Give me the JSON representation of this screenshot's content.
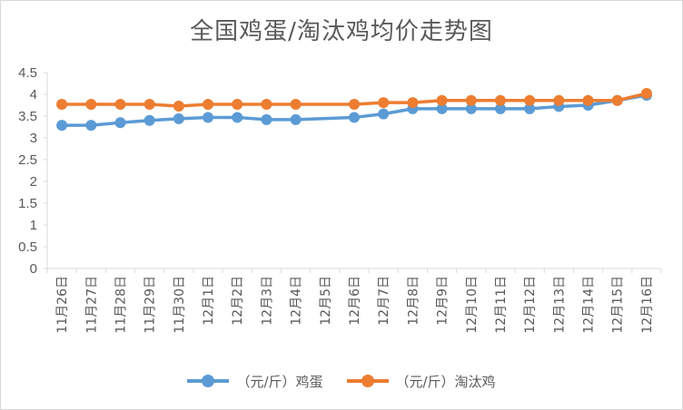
{
  "chart_data": {
    "type": "line",
    "title": "全国鸡蛋/淘汰鸡均价走势图",
    "categories": [
      "11月26日",
      "11月27日",
      "11月28日",
      "11月29日",
      "11月30日",
      "12月1日",
      "12月2日",
      "12月3日",
      "12月4日",
      "12月5日",
      "12月6日",
      "12月7日",
      "12月8日",
      "12月9日",
      "12月10日",
      "12月11日",
      "12月12日",
      "12月13日",
      "12月14日",
      "12月15日",
      "12月16日"
    ],
    "yticks": [
      "0",
      "0.5",
      "1",
      "1.5",
      "2",
      "2.5",
      "3",
      "3.5",
      "4",
      "4.5"
    ],
    "ylim": [
      0,
      4.5
    ],
    "grid": false,
    "legend_position": "bottom",
    "series": [
      {
        "name": "（元/斤）鸡蛋",
        "color": "#5b9bd5",
        "values": [
          3.29,
          3.29,
          3.35,
          3.4,
          3.44,
          3.47,
          3.47,
          3.42,
          3.42,
          null,
          3.47,
          3.55,
          3.67,
          3.67,
          3.67,
          3.67,
          3.67,
          3.72,
          3.75,
          3.86,
          3.98
        ]
      },
      {
        "name": "（元/斤）淘汰鸡",
        "color": "#ed7d31",
        "values": [
          3.77,
          3.77,
          3.77,
          3.77,
          3.73,
          3.77,
          3.77,
          3.77,
          3.77,
          null,
          3.77,
          3.81,
          3.81,
          3.86,
          3.86,
          3.86,
          3.86,
          3.86,
          3.86,
          3.86,
          4.02
        ]
      }
    ]
  }
}
